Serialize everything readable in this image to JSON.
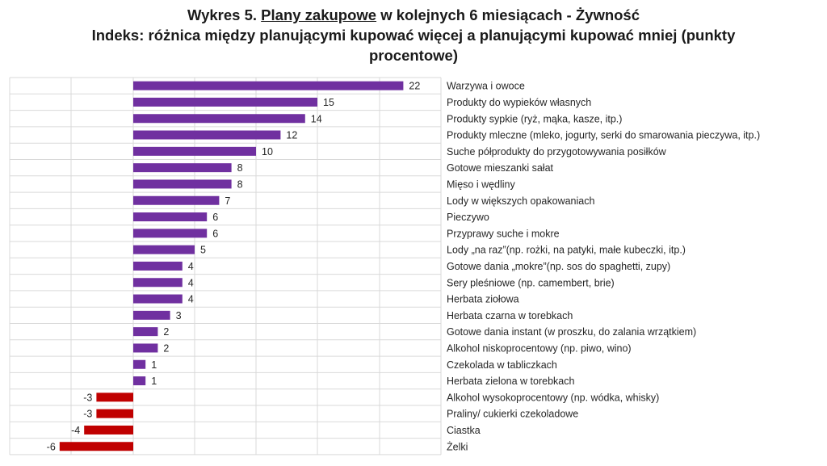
{
  "header": {
    "title_prefix": "Wykres 5. ",
    "title_underlined": "Plany zakupowe",
    "title_suffix": " w kolejnych 6 miesiącach - Żywność",
    "subtitle": "Indeks: różnica między planującymi kupować więcej a planującymi kupować mniej (punkty procentowe)"
  },
  "colors": {
    "positive": "#7030A0",
    "negative": "#C00000",
    "grid": "#D9D9D9",
    "text": "#262626"
  },
  "chart_data": {
    "type": "bar",
    "orientation": "horizontal",
    "title": "Wykres 5. Plany zakupowe w kolejnych 6 miesiącach - Żywność",
    "subtitle": "Indeks: różnica między planującymi kupować więcej a planującymi kupować mniej (punkty procentowe)",
    "categories": [
      "Warzywa i owoce",
      "Produkty do wypieków własnych",
      "Produkty sypkie (ryż, mąka, kasze, itp.)",
      "Produkty mleczne (mleko, jogurty, serki do smarowania pieczywa, itp.)",
      "Suche półprodukty do przygotowywania posiłków",
      "Gotowe mieszanki sałat",
      "Mięso i wędliny",
      "Lody w większych opakowaniach",
      "Pieczywo",
      "Przyprawy suche i mokre",
      "Lody „na raz”(np. rożki, na patyki, małe kubeczki, itp.)",
      "Gotowe dania „mokre”(np. sos do spaghetti, zupy)",
      "Sery pleśniowe (np. camembert, brie)",
      "Herbata ziołowa",
      "Herbata czarna w torebkach",
      "Gotowe dania instant (w proszku, do zalania wrzątkiem)",
      "Alkohol niskoprocentowy (np. piwo, wino)",
      "Czekolada w tabliczkach",
      "Herbata zielona w torebkach",
      "Alkohol wysokoprocentowy (np. wódka, whisky)",
      "Praliny/ cukierki czekoladowe",
      "Ciastka",
      "Żelki"
    ],
    "values": [
      22,
      15,
      14,
      12,
      10,
      8,
      8,
      7,
      6,
      6,
      5,
      4,
      4,
      4,
      3,
      2,
      2,
      1,
      1,
      -3,
      -3,
      -4,
      -6
    ],
    "xlim": [
      -10,
      25
    ],
    "grid": true,
    "legend": "none"
  }
}
